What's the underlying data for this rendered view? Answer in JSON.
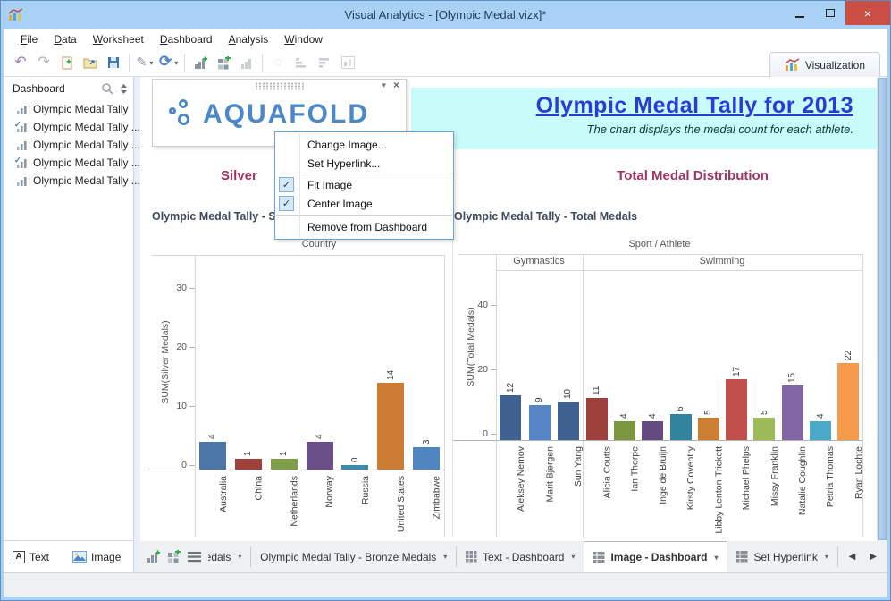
{
  "window": {
    "title": "Visual Analytics - [Olympic Medal.vizx]*",
    "controls": [
      "minimize",
      "maximize",
      "close"
    ]
  },
  "menu": {
    "items": [
      "File",
      "Data",
      "Worksheet",
      "Dashboard",
      "Analysis",
      "Window"
    ]
  },
  "toolbar": {
    "visualization_label": "Visualization",
    "buttons": [
      {
        "name": "undo",
        "sep_before": false
      },
      {
        "name": "redo"
      },
      {
        "name": "new-worksheet-doc"
      },
      {
        "name": "open-folder"
      },
      {
        "name": "save"
      },
      {
        "name": "format-pen",
        "caret": true,
        "sep_before": true
      },
      {
        "name": "refresh",
        "caret": true
      },
      {
        "name": "add-worksheet",
        "sep_before": true
      },
      {
        "name": "add-dashboard"
      },
      {
        "name": "duplicate-worksheet",
        "disabled": true
      },
      {
        "name": "clear-selection",
        "sep_before": true,
        "disabled": true
      },
      {
        "name": "sort-ascending",
        "disabled": true
      },
      {
        "name": "sort-descending",
        "disabled": true
      },
      {
        "name": "show-me",
        "disabled": true
      }
    ]
  },
  "sidebar": {
    "title": "Dashboard",
    "items": [
      {
        "label": "Olympic Medal Tally",
        "checked": false
      },
      {
        "label": "Olympic Medal Tally ...",
        "checked": true
      },
      {
        "label": "Olympic Medal Tally ...",
        "checked": false
      },
      {
        "label": "Olympic Medal Tally ...",
        "checked": true
      },
      {
        "label": "Olympic Medal Tally ...",
        "checked": false
      }
    ],
    "footer": {
      "text_label": "Text",
      "image_label": "Image"
    }
  },
  "dashboard": {
    "logo_text": "AQUAFOLD",
    "banner": {
      "title": "Olympic Medal Tally for 2013",
      "subtitle": "The chart displays the medal count for each athlete.",
      "bg_color": "#c9fbfb",
      "title_color": "#2b3bd6"
    },
    "left_heading": "Silver",
    "right_heading": "Total Medal Distribution",
    "heading_color": "#9e3566"
  },
  "context_menu": {
    "items": [
      {
        "label": "Change Image...",
        "checked": false
      },
      {
        "label": "Set Hyperlink...",
        "checked": false,
        "sep_after": true
      },
      {
        "label": "Fit Image",
        "checked": true
      },
      {
        "label": "Center Image",
        "checked": true,
        "sep_after": "strong"
      },
      {
        "label": "Remove from Dashboard",
        "checked": false
      }
    ]
  },
  "chart_data": [
    {
      "type": "bar",
      "title": "Olympic Medal Tally - S",
      "xlabel": "Country",
      "ylabel": "SUM(Silver Medals)",
      "yticks": [
        0,
        10,
        20,
        30
      ],
      "ylim": [
        0,
        36
      ],
      "grid": false,
      "categories": [
        "Australia",
        "China",
        "Netherlands",
        "Norway",
        "Russia",
        "United States",
        "Zimbabwe"
      ],
      "values": [
        4,
        1,
        1,
        4,
        0,
        14,
        3
      ],
      "colors": [
        "#4a76a8",
        "#9e413d",
        "#7f9e49",
        "#6a4f88",
        "#3d8ba8",
        "#cc7c33",
        "#4f86c0"
      ]
    },
    {
      "type": "bar",
      "title": "Olympic Medal Tally - Total Medals",
      "xlabel": "Sport / Athlete",
      "ylabel": "SUM(Total Medals)",
      "yticks": [
        0,
        20,
        40
      ],
      "ylim": [
        0,
        55
      ],
      "grid": false,
      "groups": [
        {
          "label": "Gymnastics",
          "count": 3
        },
        {
          "label": "Swimming",
          "count": 10
        }
      ],
      "categories": [
        "Aleksey Nemov",
        "Marit Bjergen",
        "Sun Yang",
        "Alicia Coutts",
        "Ian Thorpe",
        "Inge de Bruijn",
        "Kirsty Coventry",
        "Libby Lenton-Trickett",
        "Michael Phelps",
        "Missy Franklin",
        "Natalie Coughlin",
        "Petria Thomas",
        "Ryan Lochte"
      ],
      "values": [
        12,
        9,
        10,
        11,
        4,
        4,
        6,
        5,
        17,
        5,
        15,
        4,
        22
      ],
      "colors": [
        "#3e6191",
        "#5585c6",
        "#3e6191",
        "#9e413d",
        "#7a963e",
        "#64497e",
        "#31839e",
        "#cc7f33",
        "#c1504c",
        "#9cba58",
        "#8165a5",
        "#4aa9c9",
        "#f59b49"
      ]
    }
  ],
  "tabs": {
    "items": [
      {
        "label": "Medals",
        "caret": true,
        "grid_icon": false,
        "active": false,
        "partial": true
      },
      {
        "label": "Olympic Medal Tally - Bronze Medals",
        "caret": true,
        "grid_icon": false,
        "active": false
      },
      {
        "label": "Text - Dashboard",
        "caret": true,
        "grid_icon": true,
        "active": false
      },
      {
        "label": "Image - Dashboard",
        "caret": true,
        "grid_icon": true,
        "active": true
      },
      {
        "label": "Set Hyperlink",
        "caret": true,
        "grid_icon": true,
        "active": false
      }
    ],
    "tools": [
      "add-worksheet",
      "add-dashboard",
      "worksheet-list"
    ],
    "nav": [
      "previous",
      "next"
    ]
  }
}
